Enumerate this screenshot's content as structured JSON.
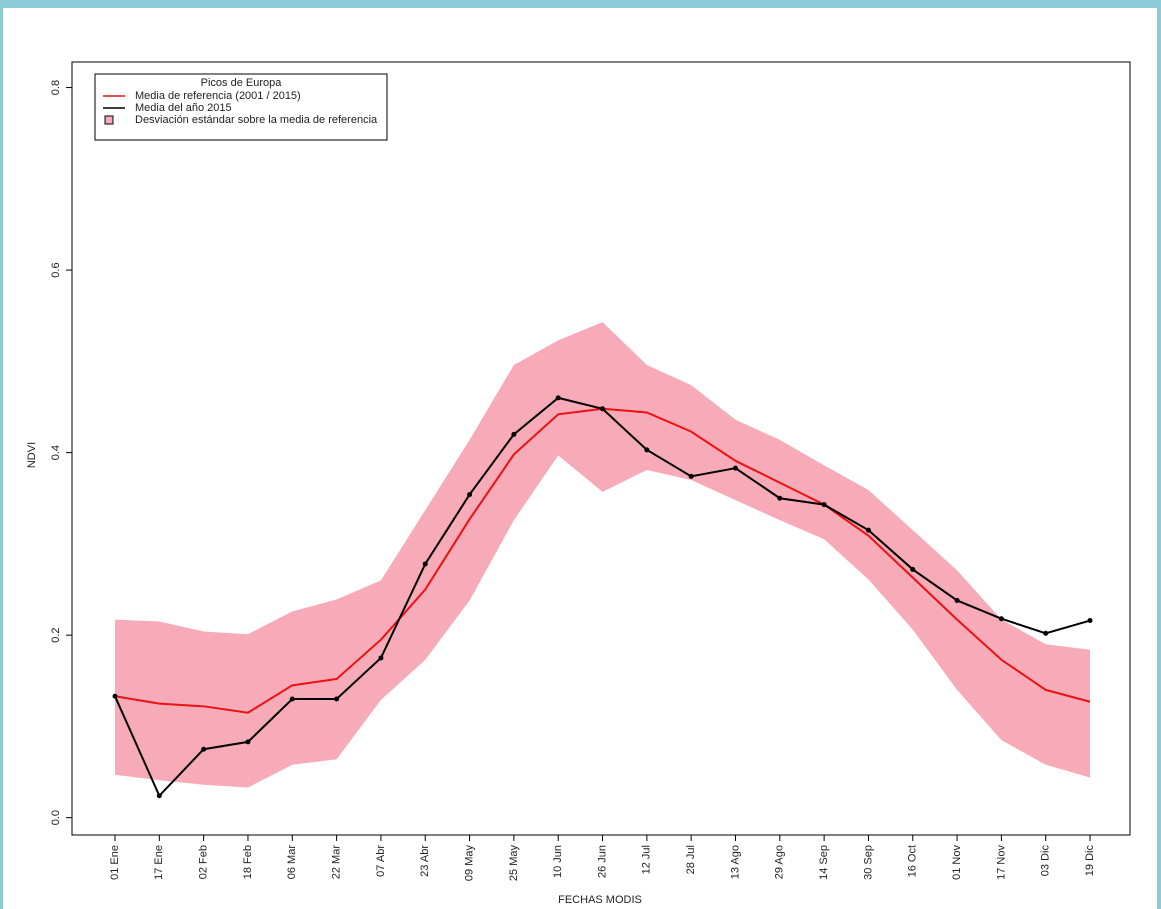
{
  "chart_data": {
    "type": "line",
    "title": "Picos de Europa",
    "xlabel": "FECHAS MODIS",
    "ylabel": "NDVI",
    "categories": [
      "01 Ene",
      "17 Ene",
      "02 Feb",
      "18 Feb",
      "06 Mar",
      "22 Mar",
      "07 Abr",
      "23 Abr",
      "09 May",
      "25 May",
      "10 Jun",
      "26 Jun",
      "12 Jul",
      "28 Jul",
      "13 Ago",
      "29 Ago",
      "14 Sep",
      "30 Sep",
      "16 Oct",
      "01 Nov",
      "17 Nov",
      "03 Dic",
      "19 Dic"
    ],
    "series": [
      {
        "name": "Media de referencia (2001 / 2015)",
        "color": "#ee1111",
        "values": [
          0.133,
          0.125,
          0.122,
          0.115,
          0.145,
          0.152,
          0.195,
          0.25,
          0.327,
          0.398,
          0.442,
          0.448,
          0.444,
          0.423,
          0.391,
          0.367,
          0.343,
          0.309,
          0.263,
          0.217,
          0.173,
          0.14,
          0.127
        ]
      },
      {
        "name": "Media del año 2015",
        "color": "#000000",
        "values": [
          0.133,
          0.024,
          0.075,
          0.083,
          0.13,
          0.13,
          0.175,
          0.278,
          0.354,
          0.42,
          0.46,
          0.448,
          0.403,
          0.374,
          0.383,
          0.35,
          0.343,
          0.315,
          0.272,
          0.238,
          0.218,
          0.202,
          0.216
        ]
      }
    ],
    "band": {
      "name": "Desviación estándar sobre la media de referencia",
      "color": "#f7aab7",
      "upper": [
        0.217,
        0.215,
        0.204,
        0.201,
        0.226,
        0.239,
        0.26,
        0.337,
        0.414,
        0.496,
        0.523,
        0.543,
        0.496,
        0.474,
        0.436,
        0.414,
        0.386,
        0.359,
        0.315,
        0.271,
        0.217,
        0.19,
        0.184
      ],
      "lower": [
        0.047,
        0.041,
        0.036,
        0.033,
        0.058,
        0.064,
        0.129,
        0.173,
        0.238,
        0.326,
        0.397,
        0.357,
        0.381,
        0.37,
        0.348,
        0.326,
        0.305,
        0.261,
        0.206,
        0.14,
        0.085,
        0.058,
        0.044
      ]
    },
    "ylim": [
      -0.019,
      0.828
    ],
    "yticks": [
      {
        "value": 0,
        "label": "0.0"
      },
      0.2,
      0.4,
      0.6,
      0.8
    ],
    "legend": "top-left"
  }
}
